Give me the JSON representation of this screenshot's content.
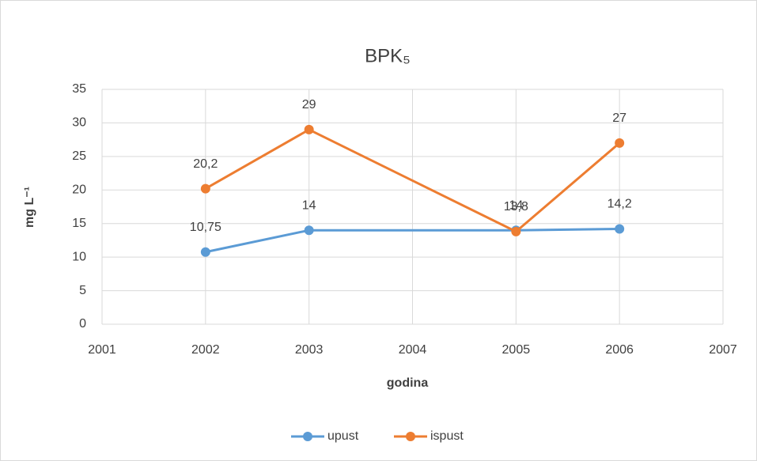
{
  "chart_data": {
    "type": "line",
    "title": "BPK₅",
    "x_label": "godina",
    "y_label": "mg L⁻¹",
    "xlim": [
      2001,
      2007
    ],
    "xticks": [
      2001,
      2002,
      2003,
      2004,
      2005,
      2006,
      2007
    ],
    "ylim": [
      0,
      35
    ],
    "yticks": [
      0,
      5,
      10,
      15,
      20,
      25,
      30,
      35
    ],
    "grid": true,
    "legend": "bottom",
    "series": [
      {
        "name": "upust",
        "color": "#5b9bd5",
        "x": [
          2002,
          2003,
          2005,
          2006
        ],
        "values": [
          10.75,
          14,
          14,
          14.2
        ],
        "value_labels": [
          "10,75",
          "14",
          "14",
          "14,2"
        ]
      },
      {
        "name": "ispust",
        "color": "#ed7d31",
        "x": [
          2002,
          2003,
          2005,
          2006
        ],
        "values": [
          20.2,
          29,
          13.8,
          27
        ],
        "value_labels": [
          "20,2",
          "29",
          "13,8",
          "27"
        ]
      }
    ]
  }
}
